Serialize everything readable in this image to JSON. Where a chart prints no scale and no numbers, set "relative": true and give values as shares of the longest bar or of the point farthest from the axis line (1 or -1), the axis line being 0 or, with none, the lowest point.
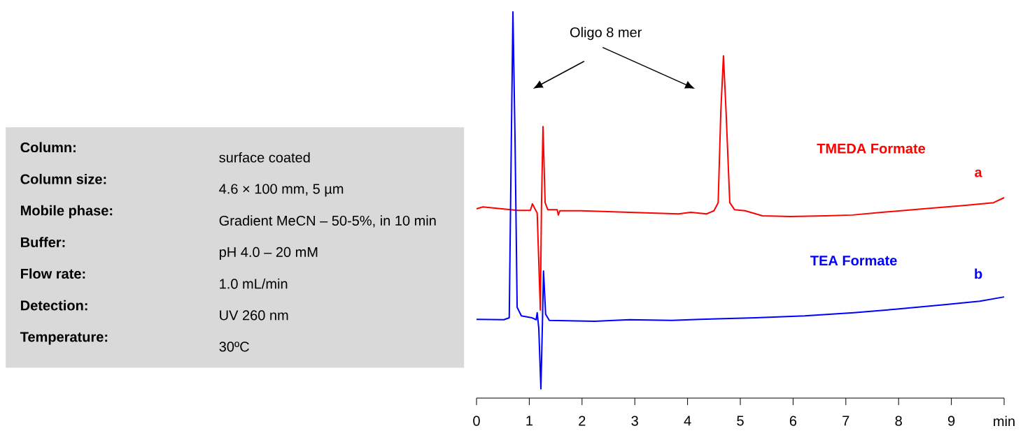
{
  "chart_data": {
    "type": "line",
    "relative": true,
    "xlim": [
      0,
      10
    ],
    "xticks": [
      0,
      1,
      2,
      3,
      4,
      5,
      6,
      7,
      8,
      9,
      {
        "value": 10,
        "label": "min"
      }
    ],
    "series": [
      {
        "name": "TMEDA Formate",
        "color": "#ff0000",
        "x": [
          0,
          0.12,
          0.78,
          1.02,
          1.06,
          1.1,
          1.15,
          1.21,
          1.23,
          1.26,
          1.3,
          1.35,
          1.53,
          1.55,
          1.58,
          1.98,
          2.9,
          3.83,
          4.06,
          4.36,
          4.5,
          4.58,
          4.63,
          4.68,
          4.73,
          4.8,
          4.89,
          5.09,
          5.42,
          5.95,
          6.62,
          7.12,
          7.68,
          8.47,
          9.27,
          9.8,
          10
        ],
        "values": [
          0.49,
          0.495,
          0.486,
          0.486,
          0.503,
          0.492,
          0.479,
          0.228,
          0.488,
          0.703,
          0.506,
          0.488,
          0.488,
          0.474,
          0.485,
          0.485,
          0.481,
          0.477,
          0.481,
          0.477,
          0.485,
          0.506,
          0.741,
          0.886,
          0.741,
          0.506,
          0.488,
          0.485,
          0.472,
          0.47,
          0.472,
          0.474,
          0.481,
          0.49,
          0.499,
          0.506,
          0.519
        ]
      },
      {
        "name": "TEA Formate",
        "color": "#0000ff",
        "x": [
          0,
          0.52,
          0.62,
          0.66,
          0.69,
          0.73,
          0.77,
          0.85,
          1.05,
          1.13,
          1.15,
          1.18,
          1.22,
          1.25,
          1.27,
          1.31,
          1.38,
          2.24,
          2.9,
          3.7,
          4.23,
          5.29,
          6.22,
          7.15,
          7.94,
          8.87,
          9.54,
          10
        ],
        "values": [
          0.204,
          0.203,
          0.208,
          0.669,
          1.0,
          0.669,
          0.235,
          0.213,
          0.208,
          0.203,
          0.221,
          0.181,
          0.024,
          0.199,
          0.329,
          0.217,
          0.201,
          0.199,
          0.203,
          0.201,
          0.204,
          0.208,
          0.213,
          0.221,
          0.23,
          0.242,
          0.251,
          0.262
        ]
      }
    ],
    "annotations": [
      "Oligo 8 mer",
      "a",
      "b",
      "Column:",
      "surface coated",
      "Column size:",
      "4.6 × 100 mm, 5 µm",
      "Mobile phase:",
      "Gradient  MeCN – 50-5%, in 10 min",
      "Buffer:",
      "pH 4.0 – 20 mM",
      "Flow rate:",
      "1.0 mL/min",
      "Detection:",
      "UV 260 nm",
      "Temperature:",
      "30ºC"
    ]
  }
}
